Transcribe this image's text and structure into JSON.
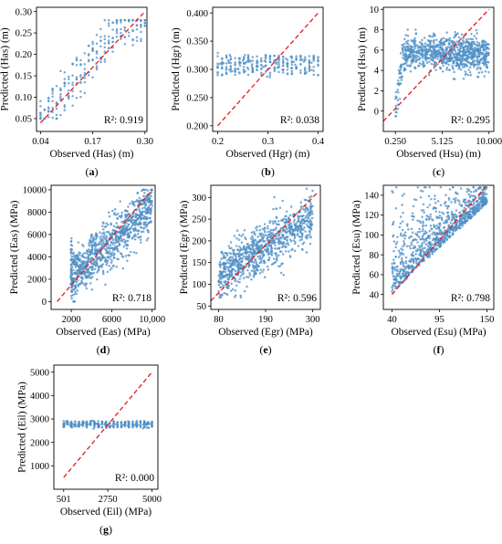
{
  "colors": {
    "points": "#4d8fc6",
    "reference_line": "#e31a1c",
    "axes": "#000000"
  },
  "chart_data": [
    {
      "id": "a",
      "type": "scatter",
      "letter": "a",
      "xlabel": "Observed (Has) (m)",
      "ylabel": "Predicted (Has) (m)",
      "xlim": [
        0.03,
        0.305
      ],
      "ylim": [
        0.02,
        0.31
      ],
      "xticks": [
        0.04,
        0.17,
        0.3
      ],
      "xtick_labels": [
        "0.04",
        "0.17",
        "0.30"
      ],
      "yticks": [
        0.05,
        0.1,
        0.15,
        0.2,
        0.25,
        0.3
      ],
      "ytick_labels": [
        "0.05",
        "0.10",
        "0.15",
        "0.20",
        "0.25",
        "0.30"
      ],
      "reference_line": [
        [
          0.04,
          0.04
        ],
        [
          0.3,
          0.3
        ]
      ],
      "r2_label": "R²: 0.919",
      "r2": 0.919,
      "point_model": "has",
      "point_ranges": {
        "x_observed": [
          0.04,
          0.3
        ],
        "y_predicted": [
          0.05,
          0.28
        ]
      }
    },
    {
      "id": "b",
      "type": "scatter",
      "letter": "b",
      "xlabel": "Observed (Hgr) (m)",
      "ylabel": "Predicted (Hgr) (m)",
      "xlim": [
        0.19,
        0.41
      ],
      "ylim": [
        0.19,
        0.41
      ],
      "xticks": [
        0.2,
        0.3,
        0.4
      ],
      "xtick_labels": [
        "0.2",
        "0.3",
        "0.4"
      ],
      "yticks": [
        0.2,
        0.25,
        0.3,
        0.35,
        0.4
      ],
      "ytick_labels": [
        "0.200",
        "0.250",
        "0.300",
        "0.350",
        "0.400"
      ],
      "reference_line": [
        [
          0.2,
          0.2
        ],
        [
          0.4,
          0.4
        ]
      ],
      "r2_label": "R²: 0.038",
      "r2": 0.038,
      "point_model": "flat",
      "point_ranges": {
        "x_observed": [
          0.2,
          0.4
        ],
        "y_predicted": [
          0.285,
          0.33
        ],
        "y_center": 0.307
      }
    },
    {
      "id": "c",
      "type": "scatter",
      "letter": "c",
      "xlabel": "Observed (Hsu) (m)",
      "ylabel": "Predicted (Hsu) (m)",
      "xlim": [
        -1.0,
        10.5
      ],
      "ylim": [
        -2.0,
        10.2
      ],
      "xticks": [
        0.25,
        5.125,
        10.0
      ],
      "xtick_labels": [
        "0.250",
        "5.125",
        "10.000"
      ],
      "yticks": [
        0,
        2,
        4,
        6,
        8,
        10
      ],
      "ytick_labels": [
        "0",
        "2",
        "4",
        "6",
        "8",
        "10"
      ],
      "reference_line": [
        [
          -1.0,
          -1.0
        ],
        [
          10.0,
          10.0
        ]
      ],
      "r2_label": "R²: 0.295",
      "r2": 0.295,
      "point_model": "plateau",
      "point_ranges": {
        "x_observed": [
          0.25,
          10.0
        ],
        "y_predicted": [
          -0.5,
          8.0
        ],
        "plateau_level": 5.6
      }
    },
    {
      "id": "d",
      "type": "scatter",
      "letter": "d",
      "xlabel": "Observed (Eas) (MPa)",
      "ylabel": "Predicted (Eas) (MPa)",
      "xlim": [
        0,
        10300
      ],
      "ylim": [
        -700,
        10400
      ],
      "xticks": [
        2000,
        6000,
        10000
      ],
      "xtick_labels": [
        "2000",
        "6000",
        "10,000"
      ],
      "yticks": [
        0,
        2000,
        4000,
        6000,
        8000,
        10000
      ],
      "ytick_labels": [
        "0",
        "2000",
        "4000",
        "6000",
        "8000",
        "10000"
      ],
      "reference_line": [
        [
          600,
          0
        ],
        [
          10000,
          10000
        ]
      ],
      "r2_label": "R²: 0.718",
      "r2": 0.718,
      "point_model": "linear-wide",
      "point_ranges": {
        "x_observed": [
          2000,
          10000
        ],
        "y_predicted": [
          0,
          10000
        ]
      }
    },
    {
      "id": "e",
      "type": "scatter",
      "letter": "e",
      "xlabel": "Observed (Egr) (MPa)",
      "ylabel": "Predicted (Egr) (MPa)",
      "xlim": [
        62,
        318
      ],
      "ylim": [
        42,
        328
      ],
      "xticks": [
        80,
        190,
        300
      ],
      "xtick_labels": [
        "80",
        "190",
        "300"
      ],
      "yticks": [
        50,
        100,
        150,
        200,
        250,
        300
      ],
      "ytick_labels": [
        "50",
        "100",
        "150",
        "200",
        "250",
        "300"
      ],
      "reference_line": [
        [
          62,
          62
        ],
        [
          310,
          310
        ]
      ],
      "r2_label": "R²: 0.596",
      "r2": 0.596,
      "point_model": "linear-band",
      "point_ranges": {
        "x_observed": [
          80,
          300
        ],
        "y_predicted": [
          70,
          320
        ]
      }
    },
    {
      "id": "f",
      "type": "scatter",
      "letter": "f",
      "xlabel": "Observed (Esu) (MPa)",
      "ylabel": "Predicted (Esu) (MPa)",
      "xlim": [
        30,
        158
      ],
      "ylim": [
        25,
        150
      ],
      "xticks": [
        40,
        95,
        150
      ],
      "xtick_labels": [
        "40",
        "95",
        "150"
      ],
      "yticks": [
        40,
        60,
        80,
        100,
        120,
        140
      ],
      "ytick_labels": [
        "40",
        "60",
        "80",
        "100",
        "120",
        "140"
      ],
      "reference_line": [
        [
          40,
          40
        ],
        [
          150,
          150
        ]
      ],
      "r2_label": "R²: 0.798",
      "r2": 0.798,
      "point_model": "fan",
      "point_ranges": {
        "x_observed": [
          40,
          150
        ],
        "y_predicted": [
          40,
          148
        ]
      }
    },
    {
      "id": "g",
      "type": "scatter",
      "letter": "g",
      "xlabel": "Observed (Eil) (MPa)",
      "ylabel": "Predicted (Eil) (MPa)",
      "xlim": [
        0,
        5300
      ],
      "ylim": [
        0,
        5300
      ],
      "xticks": [
        501,
        2750,
        5000
      ],
      "xtick_labels": [
        "501",
        "2750",
        "5000"
      ],
      "yticks": [
        1000,
        2000,
        3000,
        4000,
        5000
      ],
      "ytick_labels": [
        "1000",
        "2000",
        "3000",
        "4000",
        "5000"
      ],
      "reference_line": [
        [
          501,
          501
        ],
        [
          5000,
          5000
        ]
      ],
      "r2_label": "R²: 0.000",
      "r2": 0.0,
      "point_model": "flat",
      "point_ranges": {
        "x_observed": [
          501,
          5000
        ],
        "y_predicted": [
          2600,
          2950
        ],
        "y_center": 2760
      }
    }
  ]
}
